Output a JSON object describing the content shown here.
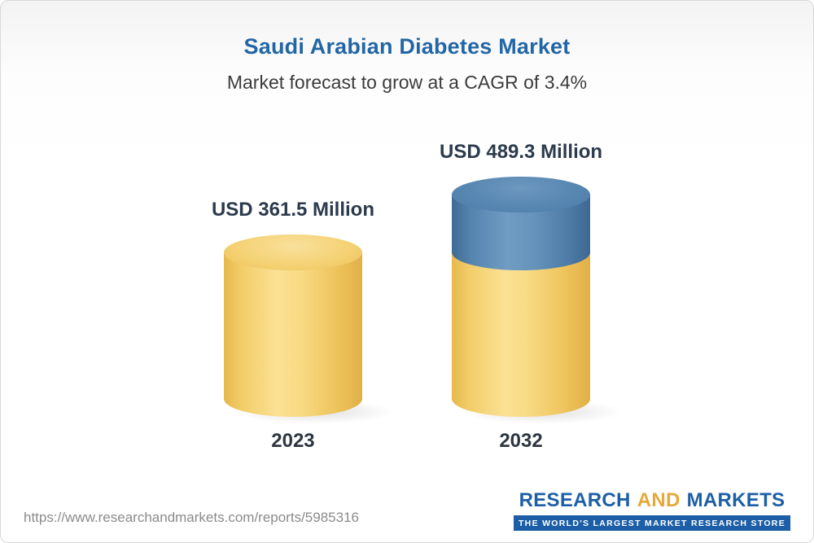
{
  "chart_data": {
    "type": "bar",
    "bar_style": "3d-cylinder",
    "title": "Saudi Arabian Diabetes Market",
    "subtitle": "Market forecast to grow at a CAGR of 3.4%",
    "cagr_percent": 3.4,
    "unit": "USD Million",
    "categories": [
      "2023",
      "2032"
    ],
    "values": [
      361.5,
      489.3
    ],
    "value_labels": [
      "USD 361.5 Million",
      "USD 489.3 Million"
    ],
    "series": [
      {
        "name": "base-value",
        "values": [
          361.5,
          361.5
        ],
        "color": "#F2CC67"
      },
      {
        "name": "growth-over-2023",
        "values": [
          0,
          127.8
        ],
        "color": "#5787B2"
      }
    ],
    "legend": "none",
    "grid": false,
    "colors": {
      "title": "#2266a5",
      "label": "#2b3a4c",
      "base_segment": "#F2CC67",
      "growth_segment": "#5787B2"
    }
  },
  "footer": {
    "url": "https://www.researchandmarkets.com/reports/5985316",
    "logo": {
      "word1": "RESEARCH",
      "word2": "AND",
      "word3": "MARKETS",
      "tagline": "THE WORLD'S LARGEST MARKET RESEARCH STORE"
    }
  }
}
